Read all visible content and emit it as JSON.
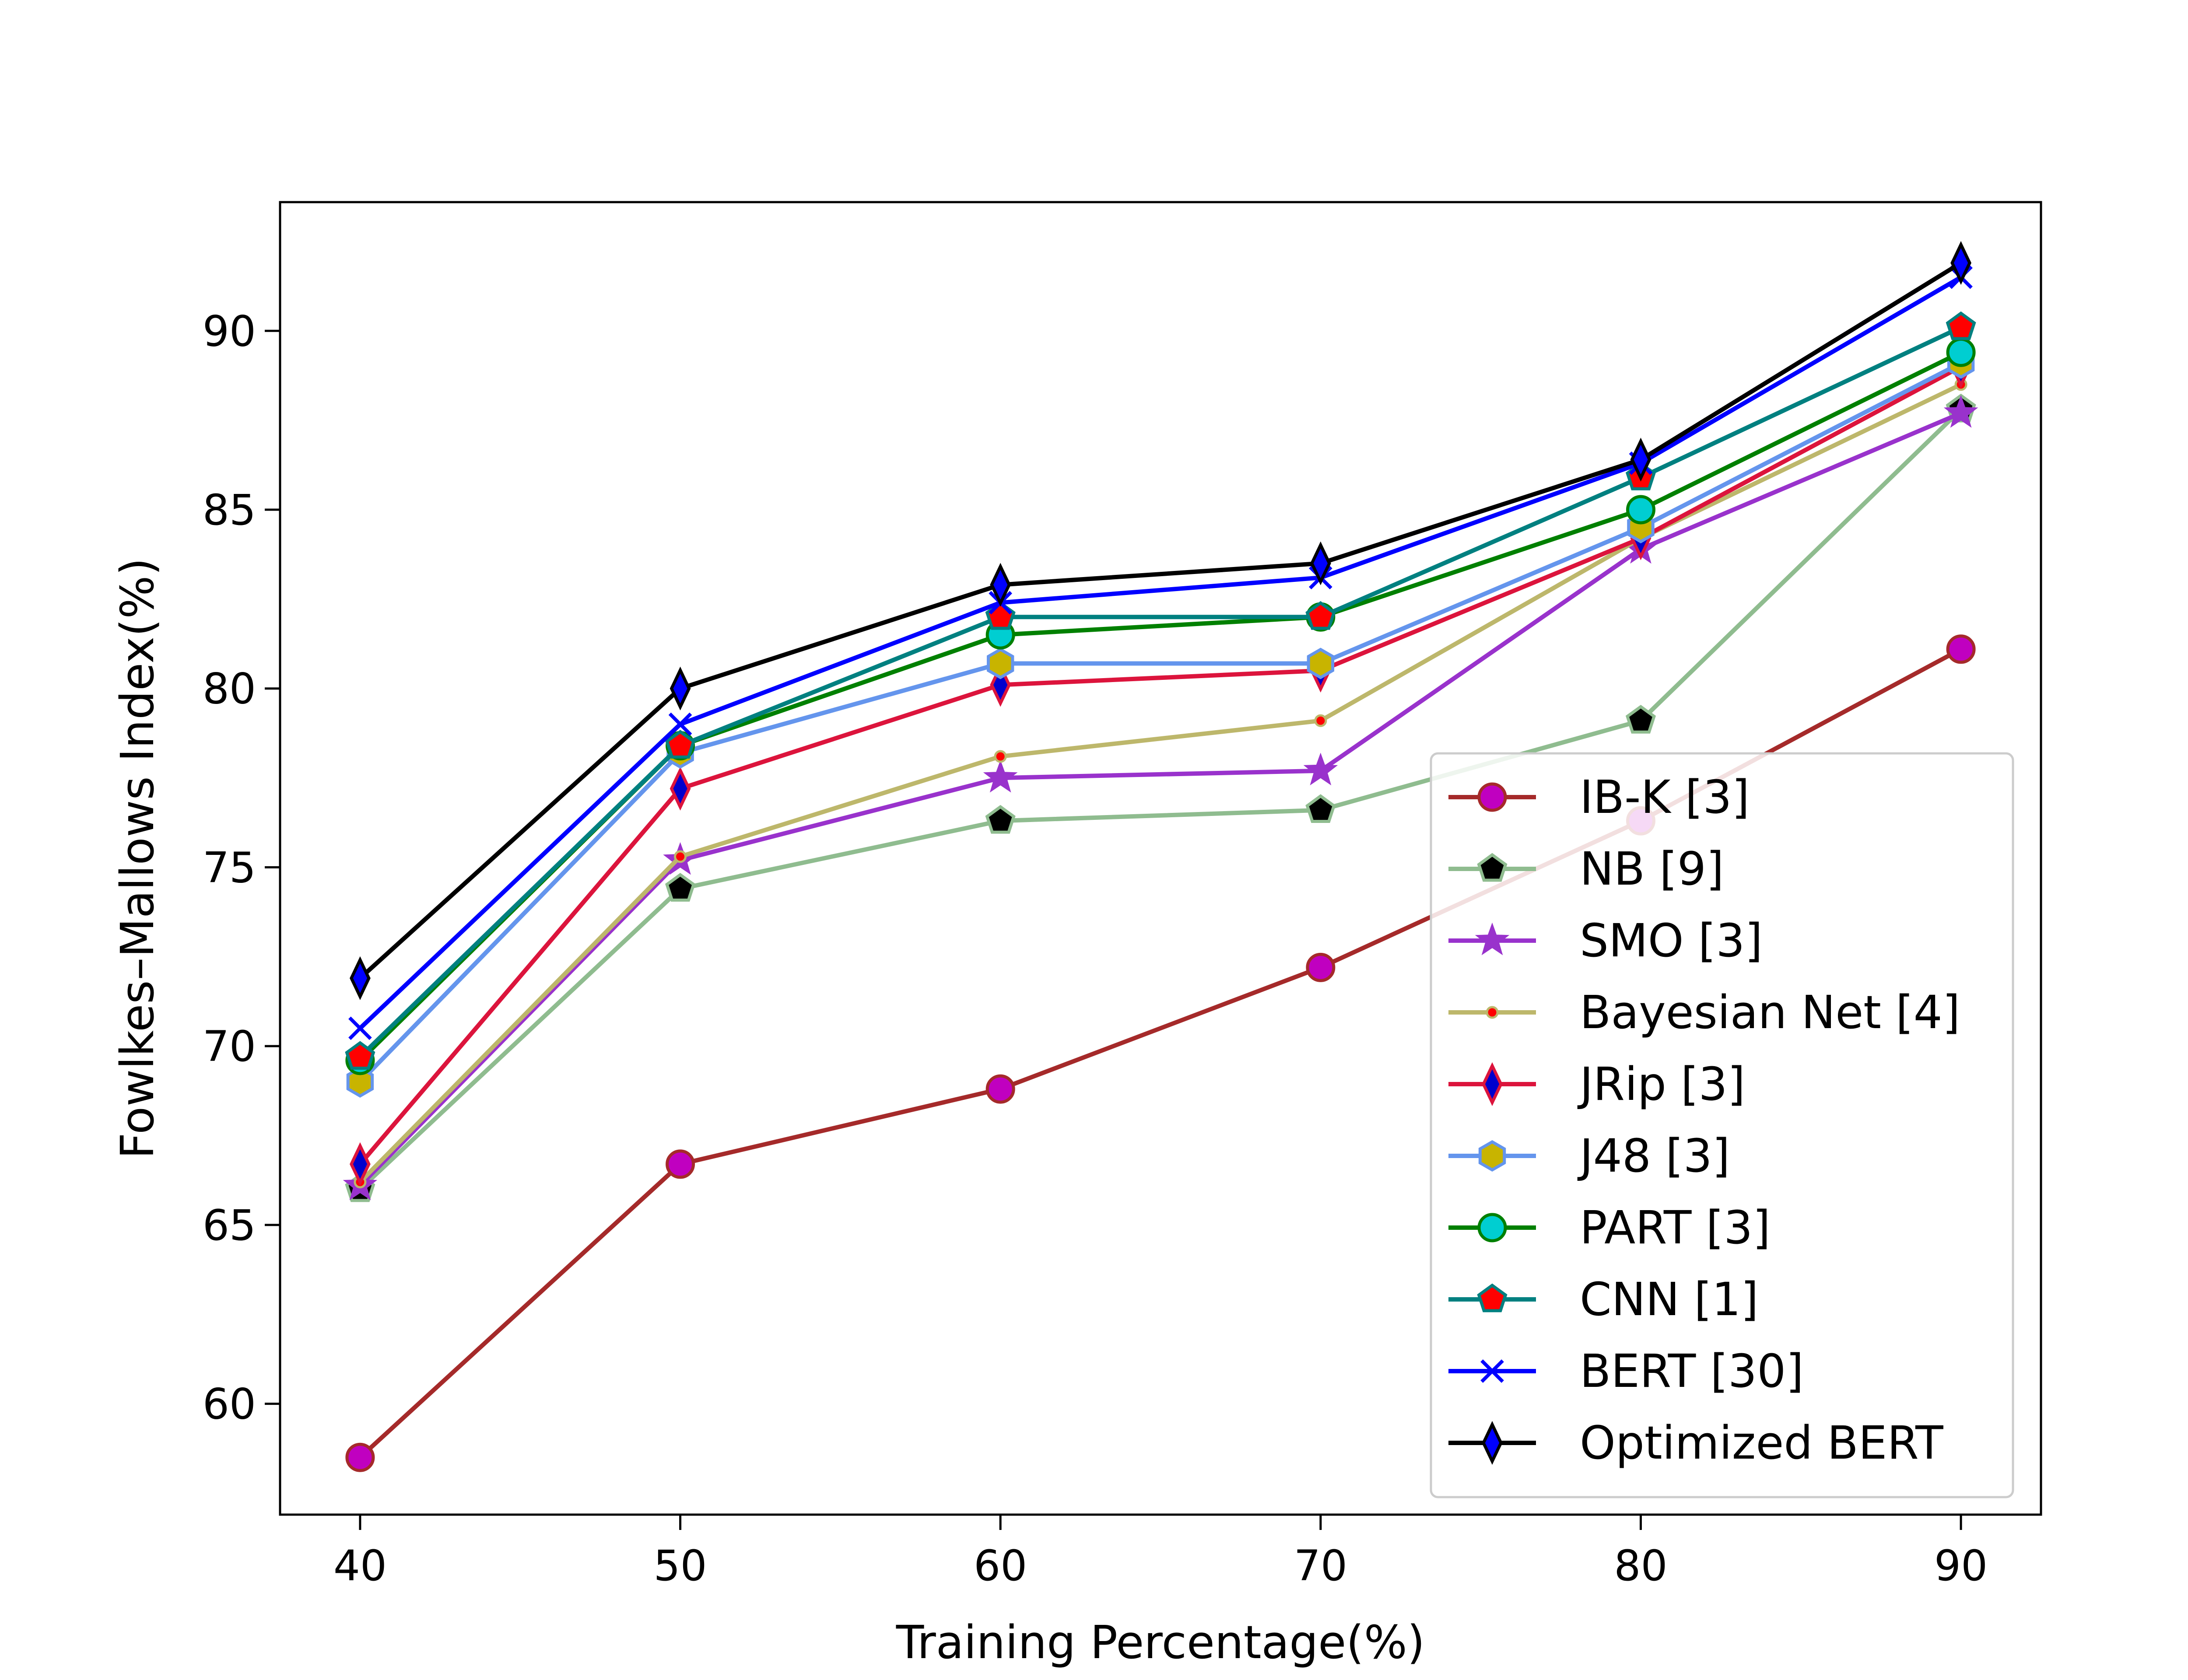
{
  "chart_data": {
    "type": "line",
    "title": "",
    "xlabel": "Training Percentage(%)",
    "ylabel": "Fowlkes–Mallows Index(%)",
    "x": [
      40,
      50,
      60,
      70,
      80,
      90
    ],
    "xticks": [
      "40",
      "50",
      "60",
      "70",
      "80",
      "90"
    ],
    "yticks": [
      "60",
      "65",
      "70",
      "75",
      "80",
      "85",
      "90"
    ],
    "xlim": [
      37.5,
      92.5
    ],
    "ylim": [
      56.9,
      93.6
    ],
    "grid": false,
    "legend_position": "lower-right",
    "series": [
      {
        "name": "IB-K [3]",
        "values": [
          58.5,
          66.7,
          68.8,
          72.2,
          76.3,
          81.1
        ],
        "color": "#a52a2a",
        "marker": "circle",
        "marker_fill": "#c000c0",
        "marker_edge": "#a52a2a"
      },
      {
        "name": "NB [9]",
        "values": [
          66.0,
          74.4,
          76.3,
          76.6,
          79.1,
          87.8
        ],
        "color": "#8fbc8f",
        "marker": "pentagon",
        "marker_fill": "#000000",
        "marker_edge": "#8fbc8f"
      },
      {
        "name": "SMO [3]",
        "values": [
          66.1,
          75.2,
          77.5,
          77.7,
          83.9,
          87.7
        ],
        "color": "#9932cc",
        "marker": "star",
        "marker_fill": "#9932cc",
        "marker_edge": "#9932cc"
      },
      {
        "name": "Bayesian Net [4]",
        "values": [
          66.2,
          75.3,
          78.1,
          79.1,
          84.2,
          88.5
        ],
        "color": "#bdb76b",
        "marker": "dot",
        "marker_fill": "#ff0000",
        "marker_edge": "#bdb76b"
      },
      {
        "name": "JRip [3]",
        "values": [
          66.7,
          77.2,
          80.1,
          80.5,
          84.2,
          89.0
        ],
        "color": "#dc143c",
        "marker": "thin_diamond",
        "marker_fill": "#0000cd",
        "marker_edge": "#dc143c"
      },
      {
        "name": "J48 [3]",
        "values": [
          69.0,
          78.2,
          80.7,
          80.7,
          84.5,
          89.1
        ],
        "color": "#6495ed",
        "marker": "hexagon",
        "marker_fill": "#c8b400",
        "marker_edge": "#6495ed"
      },
      {
        "name": "PART [3]",
        "values": [
          69.6,
          78.4,
          81.5,
          82.0,
          85.0,
          89.4
        ],
        "color": "#008000",
        "marker": "circle",
        "marker_fill": "#00ced1",
        "marker_edge": "#008000"
      },
      {
        "name": "CNN [1]",
        "values": [
          69.7,
          78.4,
          82.0,
          82.0,
          85.9,
          90.1
        ],
        "color": "#008080",
        "marker": "pentagon",
        "marker_fill": "#ff0000",
        "marker_edge": "#008080"
      },
      {
        "name": "BERT [30]",
        "values": [
          70.5,
          79.0,
          82.4,
          83.1,
          86.3,
          91.5
        ],
        "color": "#0000ff",
        "marker": "x",
        "marker_fill": "#0000ff",
        "marker_edge": "#0000ff"
      },
      {
        "name": "Optimized BERT",
        "values": [
          71.9,
          80.0,
          82.9,
          83.5,
          86.4,
          91.9
        ],
        "color": "#000000",
        "marker": "thin_diamond",
        "marker_fill": "#0000ff",
        "marker_edge": "#000000"
      }
    ]
  }
}
